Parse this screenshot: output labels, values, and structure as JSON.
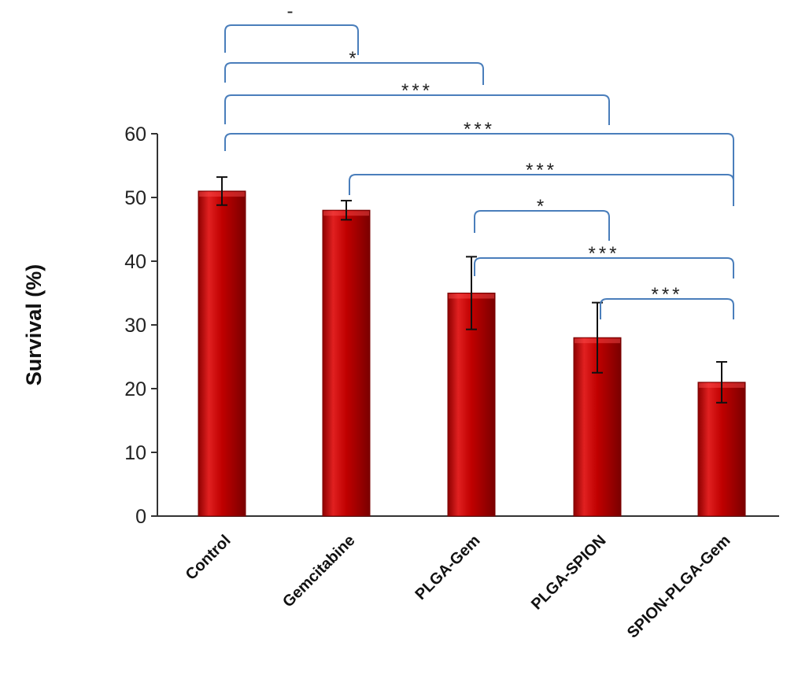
{
  "chart_data": {
    "type": "bar",
    "title": "",
    "xlabel": "",
    "ylabel": "Survival (%)",
    "ylim": [
      0,
      60
    ],
    "yticks": [
      0,
      10,
      20,
      30,
      40,
      50,
      60
    ],
    "categories": [
      "Control",
      "Gemcitabine",
      "PLGA-Gem",
      "PLGA-SPION",
      "SPION-PLGA-Gem"
    ],
    "values": [
      51,
      48,
      35,
      28,
      21
    ],
    "error": [
      2.2,
      1.5,
      5.7,
      5.5,
      3.2
    ],
    "comparisons": [
      {
        "from": "Control",
        "to": "Gemcitabine",
        "label": "-"
      },
      {
        "from": "Control",
        "to": "PLGA-Gem",
        "label": "*"
      },
      {
        "from": "Control",
        "to": "PLGA-SPION",
        "label": "***"
      },
      {
        "from": "Control",
        "to": "SPION-PLGA-Gem",
        "label": "***"
      },
      {
        "from": "Gemcitabine",
        "to": "SPION-PLGA-Gem",
        "label": "***"
      },
      {
        "from": "PLGA-Gem",
        "to": "PLGA-SPION",
        "label": "*"
      },
      {
        "from": "PLGA-Gem",
        "to": "SPION-PLGA-Gem",
        "label": "***"
      },
      {
        "from": "PLGA-SPION",
        "to": "SPION-PLGA-Gem",
        "label": "***"
      }
    ],
    "colors": {
      "bar": "#c00000",
      "bar_dark": "#7a0000",
      "bracket": "#4a7ebb",
      "axis": "#333333",
      "error_bar": "#111111"
    }
  }
}
